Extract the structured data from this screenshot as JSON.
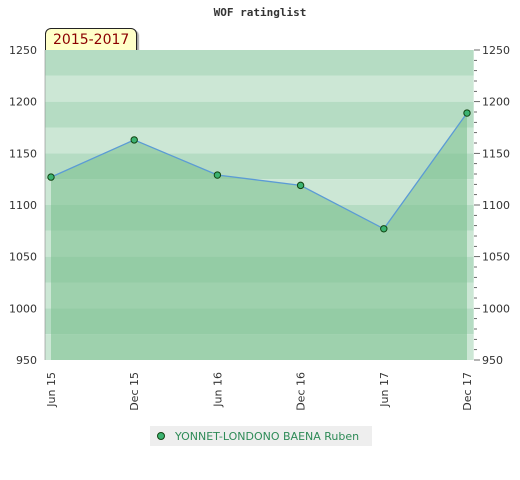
{
  "chart_data": {
    "type": "area",
    "title": "WOF ratinglist",
    "period_label": "2015-2017",
    "categories": [
      "Jun 15",
      "Dec 15",
      "Jun 16",
      "Dec 16",
      "Jun 17",
      "Dec 17"
    ],
    "series": [
      {
        "name": "YONNET-LONDONO BAENA Ruben",
        "values": [
          1127,
          1163,
          1129,
          1119,
          1077,
          1189
        ]
      }
    ],
    "ylim": [
      950,
      1250
    ],
    "yticks": [
      "950",
      "1000",
      "1050",
      "1100",
      "1150",
      "1200",
      "1250"
    ],
    "y_axis_both_sides": true,
    "grid": true,
    "legend": "bottom-center",
    "colors": {
      "line": "#5b9bd5",
      "area": "#78c08c",
      "marker": "#3cb371",
      "band_dark": "#b5dcc3",
      "band_light": "#cce7d5"
    }
  }
}
